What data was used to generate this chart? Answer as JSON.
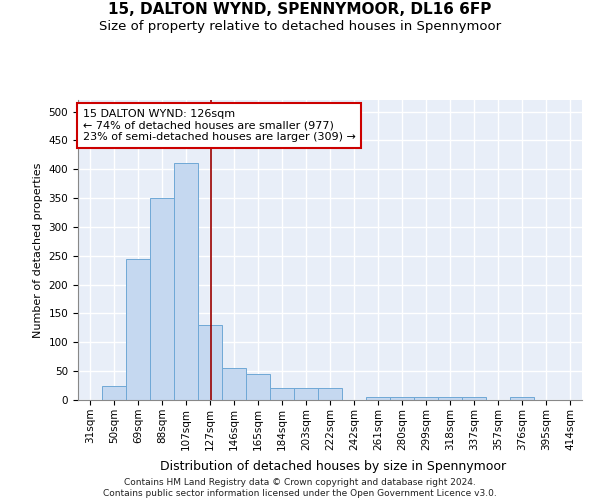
{
  "title1": "15, DALTON WYND, SPENNYMOOR, DL16 6FP",
  "title2": "Size of property relative to detached houses in Spennymoor",
  "xlabel": "Distribution of detached houses by size in Spennymoor",
  "ylabel": "Number of detached properties",
  "categories": [
    "31sqm",
    "50sqm",
    "69sqm",
    "88sqm",
    "107sqm",
    "127sqm",
    "146sqm",
    "165sqm",
    "184sqm",
    "203sqm",
    "222sqm",
    "242sqm",
    "261sqm",
    "280sqm",
    "299sqm",
    "318sqm",
    "337sqm",
    "357sqm",
    "376sqm",
    "395sqm",
    "414sqm"
  ],
  "values": [
    0,
    25,
    245,
    350,
    410,
    130,
    55,
    45,
    20,
    20,
    20,
    0,
    5,
    5,
    5,
    5,
    5,
    0,
    5,
    0,
    0
  ],
  "bar_color": "#c5d8f0",
  "bar_edge_color": "#6fa8d6",
  "vline_x_index": 5.05,
  "vline_color": "#990000",
  "annotation_text": "15 DALTON WYND: 126sqm\n← 74% of detached houses are smaller (977)\n23% of semi-detached houses are larger (309) →",
  "annotation_box_color": "#ffffff",
  "annotation_box_edge": "#cc0000",
  "footer": "Contains HM Land Registry data © Crown copyright and database right 2024.\nContains public sector information licensed under the Open Government Licence v3.0.",
  "ylim": [
    0,
    520
  ],
  "yticks": [
    0,
    50,
    100,
    150,
    200,
    250,
    300,
    350,
    400,
    450,
    500
  ],
  "background_color": "#e8eef8",
  "grid_color": "#ffffff",
  "title1_fontsize": 11,
  "title2_fontsize": 9.5,
  "xlabel_fontsize": 9,
  "ylabel_fontsize": 8,
  "annotation_fontsize": 8,
  "footer_fontsize": 6.5,
  "tick_fontsize": 7.5
}
